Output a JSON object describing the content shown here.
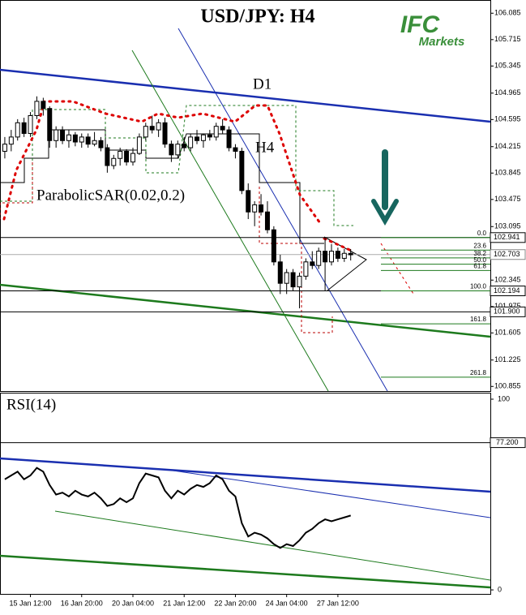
{
  "chart_data": {
    "type": "candlestick",
    "title": "USD/JPY: H4",
    "logo": {
      "brand": "IFC",
      "sub": "Markets"
    },
    "annotations": {
      "d1": "D1",
      "h4": "H4",
      "indicator": "ParabolicSAR(0.02,0.2)"
    },
    "xlim": [
      -0.75,
      75.8
    ],
    "xticks": [
      {
        "value": 4,
        "label": "15 Jan 12:00"
      },
      {
        "value": 12,
        "label": "16 Jan 20:00"
      },
      {
        "value": 20,
        "label": "20 Jan 04:00"
      },
      {
        "value": 28,
        "label": "21 Jan 12:00"
      },
      {
        "value": 36,
        "label": "22 Jan 20:00"
      },
      {
        "value": 44,
        "label": "24 Jan 04:00"
      },
      {
        "value": 52,
        "label": "27 Jan 12:00"
      }
    ],
    "ylim": [
      100.79,
      106.27
    ],
    "yticks": [
      100.855,
      101.225,
      101.605,
      101.975,
      102.345,
      103.095,
      103.475,
      103.845,
      104.215,
      104.595,
      104.965,
      105.345,
      105.715,
      106.085
    ],
    "price_levels": [
      102.941,
      102.703,
      102.194,
      {
        "value": 101.9,
        "label": "101.900"
      }
    ],
    "fib_levels": [
      {
        "value": 0,
        "label": "0.0"
      },
      23.6,
      38.2,
      {
        "value": 50,
        "label": "50.0"
      },
      61.8,
      {
        "value": 100,
        "label": "100.0"
      },
      161.8,
      261.8
    ],
    "open": [
      104.15,
      104.25,
      104.35,
      104.55,
      104.4,
      104.65,
      104.85,
      104.75,
      104.3,
      104.45,
      104.3,
      104.38,
      104.28,
      104.35,
      104.25,
      104.3,
      104.2,
      103.95,
      104.05,
      104.15,
      104.0,
      104.12,
      104.35,
      104.5,
      104.45,
      104.55,
      104.25,
      104.1,
      104.25,
      104.2,
      104.35,
      104.3,
      104.38,
      104.35,
      104.5,
      104.45,
      104.2,
      104.15,
      103.6,
      103.3,
      103.4,
      103.3,
      103.05,
      102.6,
      102.3,
      102.45,
      102.25,
      102.4,
      102.6,
      102.55,
      102.75,
      102.6,
      102.75,
      102.65,
      102.72
    ],
    "high": [
      104.35,
      104.45,
      104.6,
      104.62,
      104.7,
      104.92,
      104.9,
      104.78,
      104.5,
      104.5,
      104.45,
      104.42,
      104.4,
      104.4,
      104.42,
      104.35,
      104.25,
      104.1,
      104.2,
      104.18,
      104.2,
      104.4,
      104.55,
      104.65,
      104.6,
      104.62,
      104.3,
      104.3,
      104.35,
      104.4,
      104.45,
      104.4,
      104.45,
      104.55,
      104.6,
      104.5,
      104.25,
      104.2,
      103.7,
      103.45,
      103.55,
      103.45,
      103.1,
      102.7,
      102.5,
      102.5,
      102.45,
      102.65,
      102.75,
      102.8,
      102.94,
      102.85,
      102.8,
      102.78,
      102.78
    ],
    "low": [
      104.05,
      104.15,
      104.3,
      104.35,
      104.35,
      104.6,
      104.65,
      104.2,
      104.2,
      104.25,
      104.2,
      104.22,
      104.2,
      104.2,
      104.22,
      104.15,
      103.85,
      103.9,
      103.95,
      103.95,
      103.95,
      104.1,
      104.3,
      104.4,
      104.35,
      104.2,
      104.0,
      104.05,
      104.15,
      104.15,
      104.25,
      104.2,
      104.3,
      104.3,
      104.4,
      104.15,
      104.05,
      103.55,
      103.2,
      103.1,
      103.25,
      103.0,
      102.55,
      102.15,
      102.15,
      102.2,
      101.95,
      102.35,
      102.5,
      102.5,
      102.2,
      102.55,
      102.6,
      102.6,
      102.62
    ],
    "close": [
      104.25,
      104.35,
      104.55,
      104.4,
      104.65,
      104.85,
      104.75,
      104.3,
      104.45,
      104.3,
      104.38,
      104.28,
      104.35,
      104.25,
      104.3,
      104.2,
      103.95,
      104.05,
      104.15,
      104.0,
      104.12,
      104.35,
      104.5,
      104.45,
      104.55,
      104.25,
      104.1,
      104.25,
      104.2,
      104.35,
      104.3,
      104.38,
      104.35,
      104.5,
      104.45,
      104.2,
      104.15,
      103.6,
      103.3,
      103.4,
      103.3,
      103.05,
      102.6,
      102.3,
      102.45,
      102.25,
      102.4,
      102.6,
      102.55,
      102.75,
      102.6,
      102.75,
      102.65,
      102.72,
      102.7
    ],
    "rsi": {
      "title": "RSI(14)",
      "ylim": [
        -2.1,
        103.4
      ],
      "yticks": [
        0,
        100
      ],
      "level": {
        "value": 77.2,
        "label": "77.200"
      },
      "values": [
        58,
        60,
        62,
        58,
        60,
        64,
        62,
        55,
        50,
        51,
        49,
        52,
        50,
        49,
        51,
        48,
        44,
        45,
        48,
        46,
        48,
        56,
        61,
        60,
        59,
        52,
        48,
        52,
        50,
        53,
        55,
        54,
        56,
        60,
        58,
        52,
        49,
        35,
        28,
        30,
        29,
        27,
        24,
        22,
        24,
        23,
        26,
        30,
        32,
        35,
        37,
        36,
        37,
        38,
        39
      ]
    }
  }
}
